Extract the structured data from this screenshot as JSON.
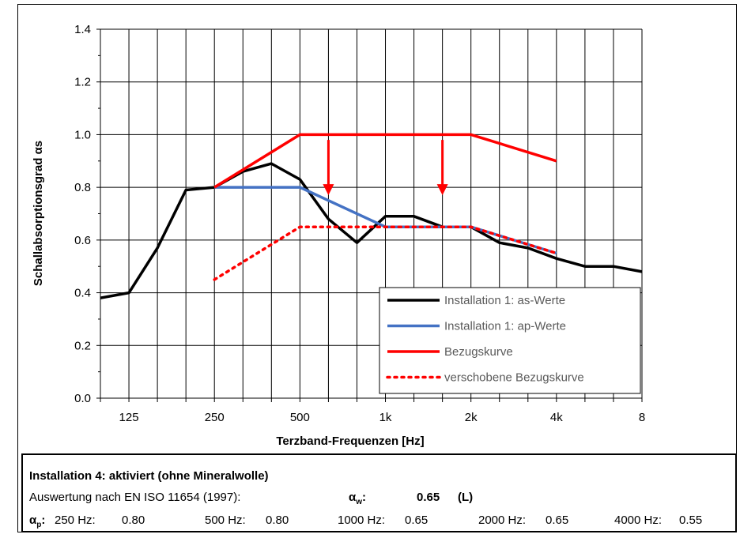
{
  "chart_data": {
    "type": "line",
    "title": "",
    "xlabel": "Terzband-Frequenzen [Hz]",
    "ylabel": "Schallabsorptionsgrad αs",
    "ylim": [
      0,
      1.4
    ],
    "yticks": [
      "0.0",
      "0.2",
      "0.4",
      "0.6",
      "0.8",
      "1.0",
      "1.2",
      "1.4"
    ],
    "x_scale": "log (third-octave bands)",
    "x_categories": [
      "100",
      "125",
      "160",
      "200",
      "250",
      "315",
      "400",
      "500",
      "630",
      "800",
      "1000",
      "1250",
      "1600",
      "2000",
      "2500",
      "3150",
      "4000",
      "5000",
      "6300",
      "8000"
    ],
    "x_tick_labels": [
      "125",
      "250",
      "500",
      "1k",
      "2k",
      "4k",
      "8"
    ],
    "grid": true,
    "legend_position": "bottom-right inside plot",
    "series": [
      {
        "name": "Installation 1: as-Werte",
        "color": "#000000",
        "style": "solid",
        "x": [
          100,
          125,
          160,
          200,
          250,
          315,
          400,
          500,
          630,
          800,
          1000,
          1250,
          1600,
          2000,
          2500,
          3150,
          4000,
          5000,
          6300,
          8000
        ],
        "values": [
          0.38,
          0.4,
          0.57,
          0.79,
          0.8,
          0.86,
          0.89,
          0.83,
          0.68,
          0.59,
          0.69,
          0.69,
          0.65,
          0.65,
          0.59,
          0.57,
          0.53,
          0.5,
          0.5,
          0.48
        ]
      },
      {
        "name": "Installation 1: ap-Werte",
        "color": "#4472C4",
        "style": "solid",
        "x": [
          250,
          500,
          1000,
          2000,
          4000
        ],
        "values": [
          0.8,
          0.8,
          0.65,
          0.65,
          0.55
        ]
      },
      {
        "name": "Bezugskurve",
        "color": "#FF0000",
        "style": "solid",
        "x": [
          250,
          500,
          1000,
          2000,
          4000
        ],
        "values": [
          0.8,
          1.0,
          1.0,
          1.0,
          0.9
        ]
      },
      {
        "name": "verschobene Bezugskurve",
        "color": "#FF0000",
        "style": "dotted",
        "x": [
          250,
          500,
          1000,
          2000,
          4000
        ],
        "values": [
          0.45,
          0.65,
          0.65,
          0.65,
          0.55
        ]
      }
    ],
    "annotations": [
      {
        "type": "arrow",
        "color": "#FF0000",
        "x": 630,
        "from": 0.98,
        "to": 0.77
      },
      {
        "type": "arrow",
        "color": "#FF0000",
        "x": 1600,
        "from": 0.98,
        "to": 0.77
      }
    ]
  },
  "info": {
    "title": "Installation 4: aktiviert (ohne Mineralwolle)",
    "eval_label": "Auswertung nach EN ISO 11654 (1997):",
    "alpha_w_symbol": "α",
    "alpha_w_sub": "w",
    "alpha_w_colon": ":",
    "alpha_w_value": "0.65",
    "alpha_w_class": "(L)",
    "alpha_p_symbol": "α",
    "alpha_p_sub": "p",
    "alpha_p_colon": ":",
    "ap_values": [
      {
        "label": "250 Hz:",
        "value": "0.80"
      },
      {
        "label": "500 Hz:",
        "value": "0.80"
      },
      {
        "label": "1000 Hz:",
        "value": "0.65"
      },
      {
        "label": "2000 Hz:",
        "value": "0.65"
      },
      {
        "label": "4000 Hz:",
        "value": "0.55"
      }
    ]
  }
}
